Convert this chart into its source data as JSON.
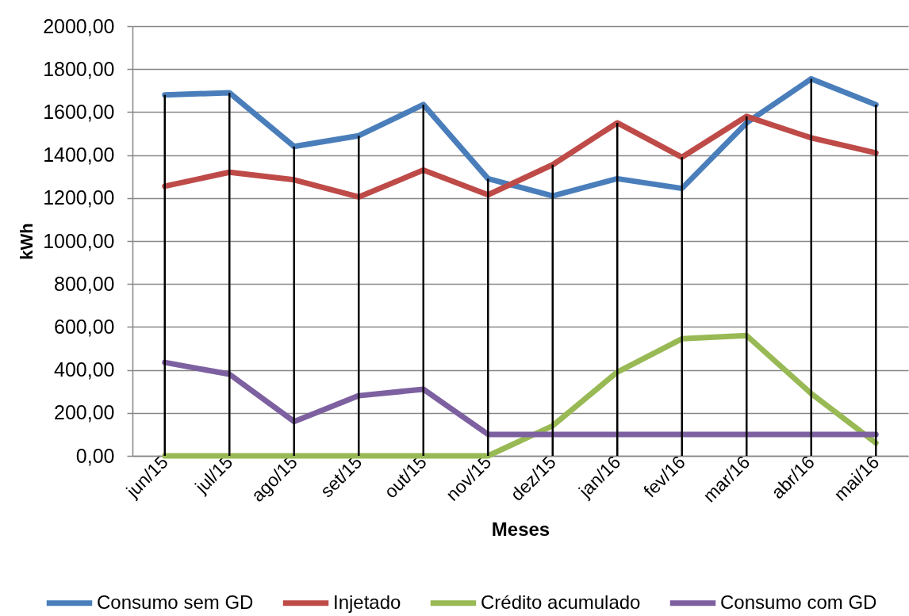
{
  "chart_data": {
    "type": "line",
    "xlabel": "Meses",
    "ylabel": "kWh",
    "categories": [
      "jun/15",
      "jul/15",
      "ago/15",
      "set/15",
      "out/15",
      "nov/15",
      "dez/15",
      "jan/16",
      "fev/16",
      "mar/16",
      "abr/16",
      "mai/16"
    ],
    "series": [
      {
        "name": "Consumo sem GD",
        "color": "#4a7ebb",
        "values": [
          1680,
          1690,
          1440,
          1490,
          1635,
          1290,
          1210,
          1290,
          1245,
          1550,
          1755,
          1635
        ]
      },
      {
        "name": "Injetado",
        "color": "#be4b48",
        "values": [
          1255,
          1320,
          1285,
          1205,
          1330,
          1215,
          1355,
          1550,
          1390,
          1580,
          1480,
          1410
        ]
      },
      {
        "name": "Crédito acumulado",
        "color": "#98b954",
        "values": [
          0,
          0,
          0,
          0,
          0,
          0,
          140,
          390,
          545,
          560,
          290,
          60
        ]
      },
      {
        "name": "Consumo com GD",
        "color": "#7d60a0",
        "values": [
          435,
          380,
          160,
          280,
          310,
          100,
          100,
          100,
          100,
          100,
          100,
          100
        ]
      },
      {
        "type": "bar",
        "color": "#000000",
        "values": [
          1680,
          1690,
          1440,
          1490,
          1635,
          1290,
          1355,
          1550,
          1390,
          1580,
          1755,
          1635
        ]
      }
    ],
    "ylim": [
      0,
      2000
    ],
    "yticks": [
      {
        "value": 0,
        "label": "0,00"
      },
      {
        "value": 200,
        "label": "200,00"
      },
      {
        "value": 400,
        "label": "400,00"
      },
      {
        "value": 600,
        "label": "600,00"
      },
      {
        "value": 800,
        "label": "800,00"
      },
      {
        "value": 1000,
        "label": "1000,00"
      },
      {
        "value": 1200,
        "label": "1200,00"
      },
      {
        "value": 1400,
        "label": "1400,00"
      },
      {
        "value": 1600,
        "label": "1600,00"
      },
      {
        "value": 1800,
        "label": "1800,00"
      },
      {
        "value": 2000,
        "label": "2000,00"
      }
    ],
    "grid": "y",
    "legend": "bottom",
    "marker": "none",
    "line_style": "solid"
  }
}
